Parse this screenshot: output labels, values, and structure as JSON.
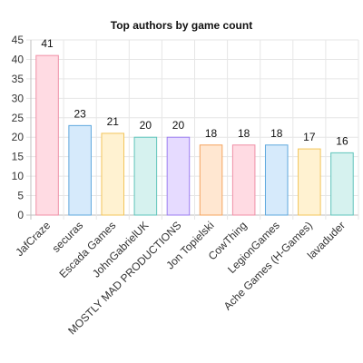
{
  "chart_data": {
    "type": "bar",
    "title": "Top authors by game count",
    "xlabel": "",
    "ylabel": "",
    "categories": [
      "JafCraze",
      "securas",
      "Escada Games",
      "JohnGabrielUK",
      "MOSTLY MAD PRODUCTIONS",
      "Jon Topielski",
      "CowThing",
      "LegionGames",
      "Ache Games (H-Games)",
      "lavaduder"
    ],
    "values": [
      41,
      23,
      21,
      20,
      20,
      18,
      18,
      18,
      17,
      16
    ],
    "ylim": [
      0,
      45
    ],
    "yticks": [
      0,
      5,
      10,
      15,
      20,
      25,
      30,
      35,
      40,
      45
    ],
    "grid": true,
    "data_labels": true,
    "bar_colors": [
      {
        "fill": "#ffdbe3",
        "stroke": "#f08fa6"
      },
      {
        "fill": "#d6eafb",
        "stroke": "#5fa8de"
      },
      {
        "fill": "#fff2d1",
        "stroke": "#f3c55a"
      },
      {
        "fill": "#d6f2ef",
        "stroke": "#5fc4bb"
      },
      {
        "fill": "#e6dbff",
        "stroke": "#9b7ef0"
      },
      {
        "fill": "#ffe7d1",
        "stroke": "#f5a45e"
      },
      {
        "fill": "#ffdbe3",
        "stroke": "#f08fa6"
      },
      {
        "fill": "#d6eafb",
        "stroke": "#5fa8de"
      },
      {
        "fill": "#fff2d1",
        "stroke": "#f3c55a"
      },
      {
        "fill": "#d6f2ef",
        "stroke": "#5fc4bb"
      }
    ]
  }
}
